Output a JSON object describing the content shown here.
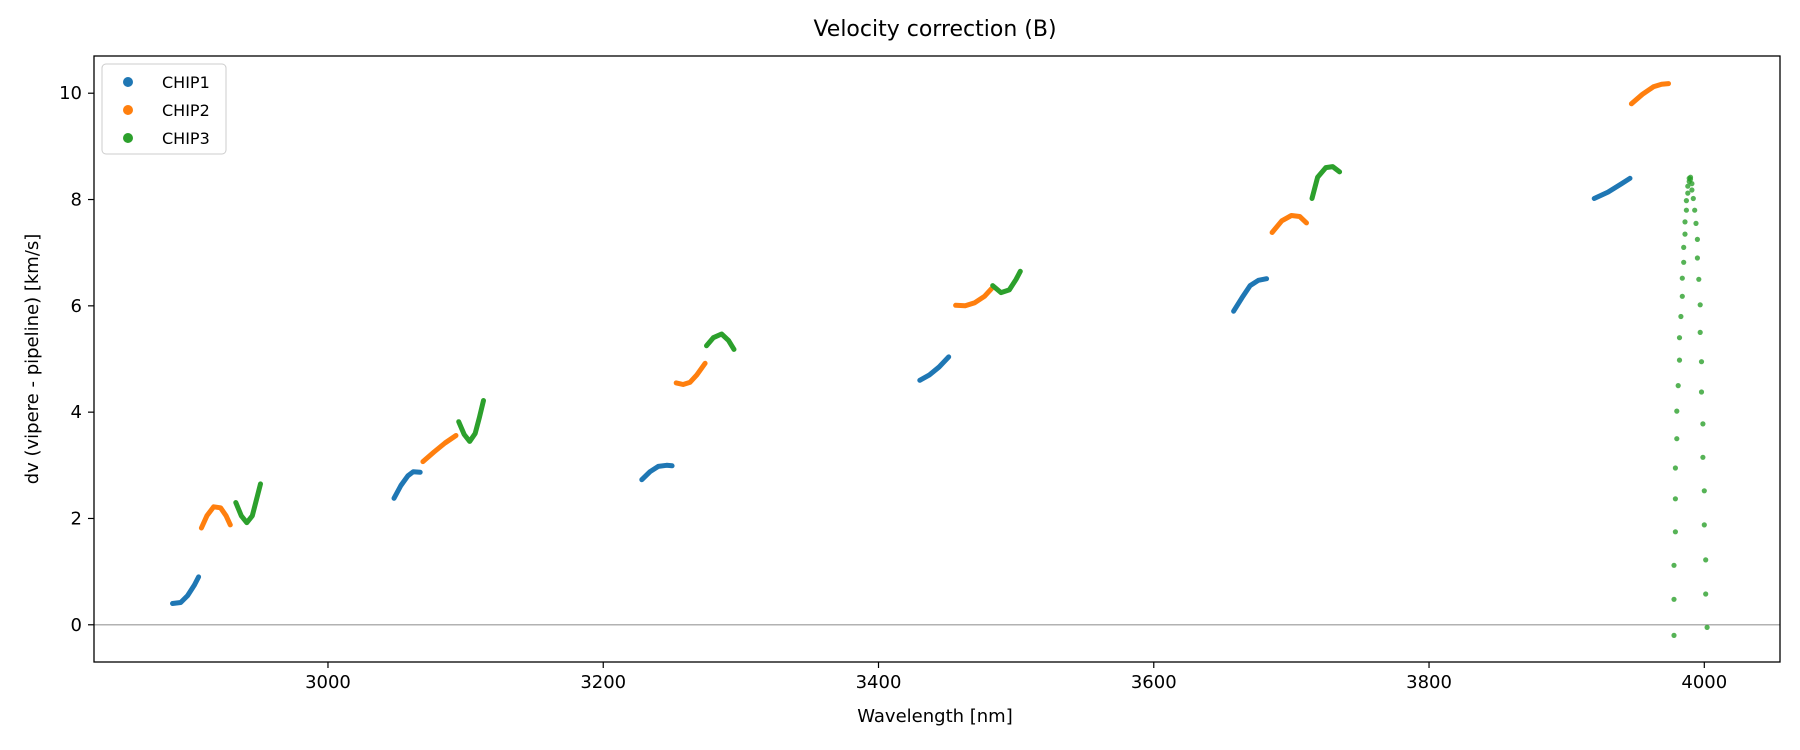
{
  "chart_data": {
    "type": "scatter",
    "title": "Velocity correction (B)",
    "xlabel": "Wavelength [nm]",
    "ylabel": "dv (vipere - pipeline) [km/s]",
    "xlim": [
      2830,
      4055
    ],
    "ylim": [
      -0.7,
      10.7
    ],
    "xticks": [
      3000,
      3200,
      3400,
      3600,
      3800,
      4000
    ],
    "yticks": [
      0,
      2,
      4,
      6,
      8,
      10
    ],
    "reference_line_y": 0,
    "legend_position": "top-left",
    "grid": false,
    "series": [
      {
        "name": "CHIP1",
        "color": "#1f77b4",
        "segments": [
          [
            [
              2887,
              0.4
            ],
            [
              2893,
              0.42
            ],
            [
              2898,
              0.55
            ],
            [
              2903,
              0.75
            ],
            [
              2906,
              0.9
            ]
          ],
          [
            [
              3048,
              2.38
            ],
            [
              3053,
              2.62
            ],
            [
              3058,
              2.8
            ],
            [
              3062,
              2.88
            ],
            [
              3067,
              2.87
            ]
          ],
          [
            [
              3228,
              2.73
            ],
            [
              3234,
              2.88
            ],
            [
              3240,
              2.98
            ],
            [
              3246,
              3.0
            ],
            [
              3250,
              2.99
            ]
          ],
          [
            [
              3430,
              4.6
            ],
            [
              3437,
              4.7
            ],
            [
              3444,
              4.85
            ],
            [
              3451,
              5.04
            ]
          ],
          [
            [
              3658,
              5.9
            ],
            [
              3664,
              6.15
            ],
            [
              3670,
              6.38
            ],
            [
              3676,
              6.48
            ],
            [
              3682,
              6.51
            ]
          ],
          [
            [
              3920,
              8.02
            ],
            [
              3930,
              8.14
            ],
            [
              3940,
              8.3
            ],
            [
              3946,
              8.4
            ]
          ]
        ]
      },
      {
        "name": "CHIP2",
        "color": "#ff7f0e",
        "segments": [
          [
            [
              2908,
              1.82
            ],
            [
              2912,
              2.05
            ],
            [
              2917,
              2.22
            ],
            [
              2922,
              2.2
            ],
            [
              2926,
              2.05
            ],
            [
              2929,
              1.88
            ]
          ],
          [
            [
              3069,
              3.07
            ],
            [
              3077,
              3.25
            ],
            [
              3085,
              3.42
            ],
            [
              3093,
              3.56
            ]
          ],
          [
            [
              3253,
              4.55
            ],
            [
              3258,
              4.52
            ],
            [
              3263,
              4.56
            ],
            [
              3268,
              4.7
            ],
            [
              3274,
              4.92
            ]
          ],
          [
            [
              3456,
              6.01
            ],
            [
              3463,
              6.0
            ],
            [
              3470,
              6.06
            ],
            [
              3477,
              6.18
            ],
            [
              3482,
              6.32
            ]
          ],
          [
            [
              3686,
              7.38
            ],
            [
              3693,
              7.6
            ],
            [
              3700,
              7.7
            ],
            [
              3706,
              7.68
            ],
            [
              3711,
              7.56
            ]
          ],
          [
            [
              3947,
              9.8
            ],
            [
              3955,
              9.98
            ],
            [
              3963,
              10.12
            ],
            [
              3969,
              10.17
            ],
            [
              3974,
              10.18
            ]
          ]
        ]
      },
      {
        "name": "CHIP3",
        "color": "#2ca02c",
        "segments": [
          [
            [
              2933,
              2.3
            ],
            [
              2937,
              2.05
            ],
            [
              2941,
              1.92
            ],
            [
              2945,
              2.05
            ],
            [
              2948,
              2.35
            ],
            [
              2951,
              2.65
            ]
          ],
          [
            [
              3095,
              3.82
            ],
            [
              3099,
              3.58
            ],
            [
              3103,
              3.45
            ],
            [
              3107,
              3.6
            ],
            [
              3110,
              3.9
            ],
            [
              3113,
              4.22
            ]
          ],
          [
            [
              3275,
              5.25
            ],
            [
              3280,
              5.4
            ],
            [
              3286,
              5.47
            ],
            [
              3291,
              5.35
            ],
            [
              3295,
              5.18
            ]
          ],
          [
            [
              3483,
              6.38
            ],
            [
              3489,
              6.25
            ],
            [
              3495,
              6.3
            ],
            [
              3500,
              6.5
            ],
            [
              3503,
              6.65
            ]
          ],
          [
            [
              3715,
              8.02
            ],
            [
              3719,
              8.42
            ],
            [
              3725,
              8.6
            ],
            [
              3730,
              8.62
            ],
            [
              3735,
              8.52
            ]
          ]
        ],
        "points": [
          [
            3978,
            -0.2
          ],
          [
            3978,
            0.48
          ],
          [
            3978,
            1.12
          ],
          [
            3979,
            1.75
          ],
          [
            3979,
            2.37
          ],
          [
            3979,
            2.95
          ],
          [
            3980,
            3.5
          ],
          [
            3980,
            4.02
          ],
          [
            3981,
            4.5
          ],
          [
            3982,
            4.98
          ],
          [
            3982,
            5.4
          ],
          [
            3983,
            5.8
          ],
          [
            3984,
            6.18
          ],
          [
            3984,
            6.52
          ],
          [
            3985,
            6.82
          ],
          [
            3985,
            7.1
          ],
          [
            3986,
            7.35
          ],
          [
            3986,
            7.58
          ],
          [
            3987,
            7.8
          ],
          [
            3987,
            7.98
          ],
          [
            3988,
            8.12
          ],
          [
            3988,
            8.25
          ],
          [
            3989,
            8.34
          ],
          [
            3989,
            8.4
          ],
          [
            3990,
            8.42
          ],
          [
            3990,
            8.38
          ],
          [
            3991,
            8.3
          ],
          [
            3991,
            8.18
          ],
          [
            3992,
            8.02
          ],
          [
            3993,
            7.8
          ],
          [
            3994,
            7.55
          ],
          [
            3995,
            7.25
          ],
          [
            3995,
            6.9
          ],
          [
            3996,
            6.5
          ],
          [
            3997,
            6.02
          ],
          [
            3997,
            5.5
          ],
          [
            3998,
            4.95
          ],
          [
            3998,
            4.38
          ],
          [
            3999,
            3.78
          ],
          [
            3999,
            3.15
          ],
          [
            4000,
            2.52
          ],
          [
            4000,
            1.88
          ],
          [
            4001,
            1.22
          ],
          [
            4001,
            0.58
          ],
          [
            4002,
            -0.05
          ]
        ]
      }
    ]
  }
}
